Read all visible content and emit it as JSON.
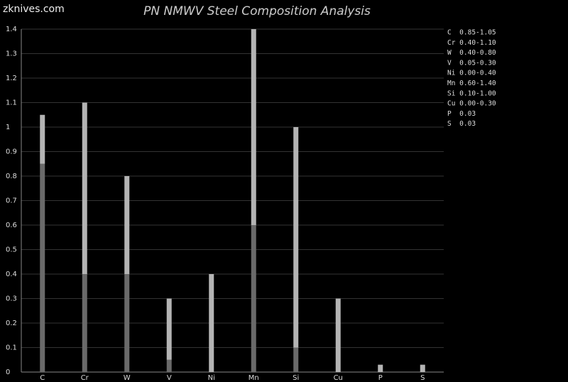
{
  "watermark": "zknives.com",
  "chart_data": {
    "type": "stacked_bar",
    "title": "PN NMWV Steel Composition Analysis",
    "categories": [
      "C",
      "Cr",
      "W",
      "V",
      "Ni",
      "Mn",
      "Si",
      "Cu",
      "P",
      "S"
    ],
    "series": [
      {
        "color": "#6a6a6a",
        "values": [
          0.85,
          0.4,
          0.4,
          0.05,
          0.0,
          0.6,
          0.1,
          0.0,
          0.0,
          0.0
        ]
      },
      {
        "color": "#b4b4b4",
        "values": [
          0.2,
          0.7,
          0.4,
          0.25,
          0.4,
          0.8,
          0.9,
          0.3,
          0.03,
          0.03
        ]
      }
    ],
    "ylim": [
      0,
      1.4
    ],
    "yticks": [
      0,
      0.1,
      0.2,
      0.3,
      0.4,
      0.5,
      0.6,
      0.7,
      0.8,
      0.9,
      1,
      1.1,
      1.2,
      1.3,
      1.4
    ],
    "grid": true,
    "legend": [
      "C  0.85-1.05",
      "Cr 0.40-1.10",
      "W  0.40-0.80",
      "V  0.05-0.30",
      "Ni 0.00-0.40",
      "Mn 0.60-1.40",
      "Si 0.10-1.00",
      "Cu 0.00-0.30",
      "P  0.03",
      "S  0.03"
    ]
  }
}
